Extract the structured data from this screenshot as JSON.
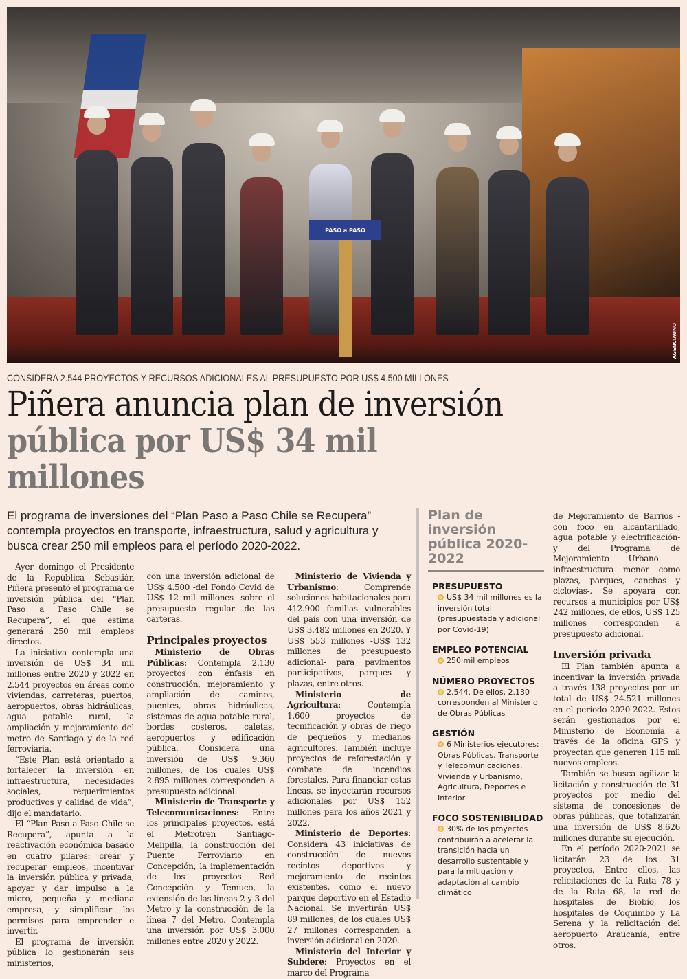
{
  "photo": {
    "podium_logo": "PASO a PASO",
    "credit": "AGENCIAUNO"
  },
  "kicker": "CONSIDERA 2.544 PROYECTOS Y RECURSOS ADICIONALES AL PRESUPUESTO POR US$ 4.500 MILLONES",
  "headline": {
    "line1": "Piñera anuncia plan de inversión",
    "line2": "pública por US$ 34 mil millones"
  },
  "deck": "El programa de inversiones  del “Plan Paso a Paso Chile se Recupera” contempla proyectos en transporte, infraestructura, salud y agricultura y busca crear 250 mil empleos para el período 2020-2022.",
  "col1": [
    "Ayer domingo el Presidente de la República Sebastián Piñera presentó el programa de inversión pública del “Plan Paso a Paso Chile se Recupera”, el que estima generará 250 mil empleos directos.",
    "La iniciativa contempla una inversión de US$ 34 mil millones entre 2020 y 2022 en 2.544 proyectos en áreas como viviendas, carreteras, puertos, aeropuertos, obras hidráulicas, agua potable rural, la ampliación y mejoramiento del metro de Santiago y de la red ferroviaria.",
    "“Este Plan está orientado a fortalecer la inversión en infraestructura, necesidades sociales, requerimientos productivos y calidad de vida”, dijo el mandatario.",
    "El “Plan Paso a Paso Chile se Recupera”, apunta a la reactivación económica basado en cuatro pilares: crear y recuperar empleos, incentivar la inversión pública y privada, apoyar y dar impulso a la micro, pequeña y mediana empresa, y simplificar los permisos para emprender e invertir.",
    "El programa de inversión pública lo gestionarán seis ministerios,"
  ],
  "col2": {
    "cont": "con una inversión adicional de US$ 4.500 -del Fondo Covid de US$ 12 mil millones- sobre el presupuesto regular de las carteras.",
    "subhead": "Principales proyectos",
    "mop_lead": "Ministerio de Obras Públicas",
    "mop_text": ": Contempla 2.130 proyectos con énfasis en construcción, mejoramiento y ampliación de caminos, puentes, obras hidráulicas, sistemas de agua potable rural, bordes costeros, caletas, aeropuertos y edificación pública. Considera una inversión de US$ 9.360 millones, de los cuales US$ 2.895 millones corresponden a presupuesto adicional.",
    "mtt_lead": "Ministerio de Transporte y Telecomunicaciones",
    "mtt_text": ": Entre los principales proyectos, está el Metrotren Santiago-Melipilla, la construcción del Puente Ferroviario en Concepción, la implementación de los proyectos Red Concepción y Temuco, la extensión de las líneas 2 y 3 del Metro y la construcción de la línea 7 del Metro. Contempla una inversión por US$ 3.000 millones entre 2020 y 2022."
  },
  "col3": {
    "minvu_lead": "Ministerio de Vivienda y Urbanismo",
    "minvu_text": ": Comprende soluciones habitacionales para 412.900 familias vulnerables del país con una inversión de US$ 3.482 millones en 2020. Y US$ 553 millones -US$ 132 millones de presupuesto adicional- para pavimentos participativos, parques y plazas, entre otros.",
    "agri_lead": "Ministerio de Agricultura",
    "agri_text": ": Contempla 1.600 proyectos de tecnificación y obras de riego de pequeños y medianos agricultores. También incluye proyectos de reforestación y combate de incendios forestales. Para financiar estas líneas, se inyectarán recursos adicionales por US$ 152 millones para los años 2021 y 2022.",
    "dep_lead": "Ministerio de Deportes",
    "dep_text": ": Considera 43 iniciativas de construcción de nuevos recintos deportivos y mejoramiento de recintos existentes, como el nuevo parque deportivo en el Estadio Nacional. Se invertirán US$ 89 millones, de los cuales US$ 27 millones corresponden a inversión adicional en 2020.",
    "int_lead": "Ministerio del Interior y Subdere",
    "int_text": ": Proyectos en el marco del Programa"
  },
  "sidebar": {
    "title": "Plan de inversión pública 2020-2022",
    "sections": [
      {
        "heading": "PRESUPUESTO",
        "text": "US$ 34 mil millones es la inversión total (presupuestada y adicional por Covid-19)"
      },
      {
        "heading": "EMPLEO POTENCIAL",
        "text": "250 mil empleos"
      },
      {
        "heading": "NÚMERO PROYECTOS",
        "text": "2.544. De ellos, 2.130 corresponden al Ministerio de Obras Públicas"
      },
      {
        "heading": "GESTIÓN",
        "text": "6 Ministerios ejecutores: Obras Públicas, Transporte y Telecomunicaciones, Vivienda y Urbanismo, Agricultura, Deportes e Interior"
      },
      {
        "heading": "FOCO SOSTENIBILIDAD",
        "text": "30% de los proyectos contribuirán a acelerar la transición hacia un desarrollo sustentable y para la  mitigación y adaptación al cambio climático"
      }
    ]
  },
  "col5": {
    "cont": "de Mejoramiento de Barrios -con foco en alcantarillado, agua potable y electrificación- y del Programa de Mejoramiento Urbano -infraestructura menor como plazas, parques, canchas y ciclovías-. Se apoyará con recursos a municipios por US$ 242 millones, de ellos, US$ 125 millones corresponden a presupuesto adicional.",
    "subhead": "Inversión privada",
    "p1": "El Plan también apunta a incentivar la inversión privada a través 138 proyectos por un total de US$ 24.521 millones en el período 2020-2022. Estos serán gestionados por el Ministerio de Economía a través de la oficina GPS y proyectan que generen 115 mil nuevos empleos.",
    "p2": "También se busca agilizar la licitación y construcción de 31 proyectos por medio del sistema de concesiones de obras públicas, que totalizarán una inversión de US$ 8.626 millones durante su ejecución.",
    "p3": "En el período 2020-2021 se licitarán 23 de los 31 proyectos. Entre ellos, las relicitaciones de la Ruta 78 y de la Ruta 68, la  red de hospitales de Biobío, los hospitales de Coquimbo y La Serena y la relicitación del aeropuerto Araucanía, entre otros."
  },
  "colors": {
    "background": "#f9ebe1",
    "headline_gray": "#7b7775",
    "bullet": "#e5b84a"
  }
}
